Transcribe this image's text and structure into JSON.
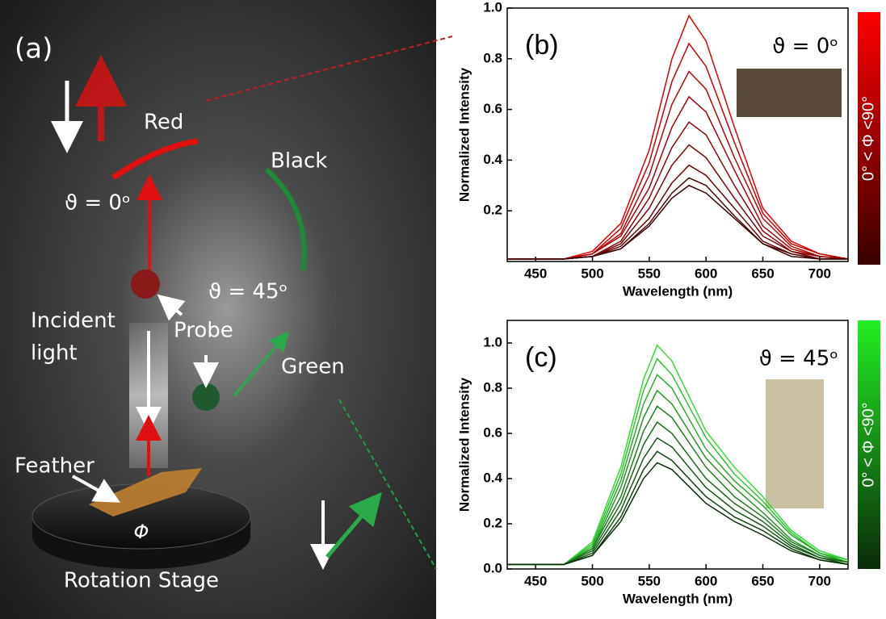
{
  "schematic": {
    "panel_label": "(a)",
    "red": "Red",
    "black": "Black",
    "theta0": "ϑ = 0ᵒ",
    "theta45": "ϑ = 45ᵒ",
    "incident": "Incident",
    "incident2": "light",
    "probe": "Probe",
    "green": "Green",
    "feather": "Feather",
    "phi": "Φ",
    "stage": "Rotation Stage"
  },
  "chart_data": [
    {
      "type": "line",
      "panel_label": "(b)",
      "annotation": "ϑ = 0ᵒ",
      "xlabel": "Wavelength (nm)",
      "ylabel": "Normalized Intensity",
      "xlim": [
        425,
        725
      ],
      "ylim": [
        0,
        1.0
      ],
      "xticks": [
        450,
        500,
        550,
        600,
        650,
        700
      ],
      "yticks": [
        0.2,
        0.4,
        0.6,
        0.8,
        {
          "value": 1,
          "label": "1.0"
        }
      ],
      "colorbar": {
        "label": "0° < Φ <90°",
        "colors": [
          "#ff0000",
          "#3a0000"
        ]
      },
      "x": [
        425,
        450,
        475,
        500,
        525,
        550,
        570,
        585,
        600,
        625,
        650,
        675,
        700,
        725
      ],
      "series": [
        {
          "color": "#e00000",
          "values": [
            0.01,
            0.01,
            0.01,
            0.04,
            0.15,
            0.44,
            0.8,
            0.97,
            0.87,
            0.53,
            0.21,
            0.08,
            0.03,
            0.01
          ]
        },
        {
          "color": "#cc0000",
          "values": [
            0.01,
            0.01,
            0.01,
            0.03,
            0.13,
            0.39,
            0.71,
            0.86,
            0.77,
            0.47,
            0.19,
            0.07,
            0.03,
            0.01
          ]
        },
        {
          "color": "#b80505",
          "values": [
            0.01,
            0.01,
            0.01,
            0.03,
            0.11,
            0.34,
            0.62,
            0.75,
            0.68,
            0.41,
            0.17,
            0.06,
            0.02,
            0.01
          ]
        },
        {
          "color": "#a30505",
          "values": [
            0.01,
            0.01,
            0.01,
            0.03,
            0.1,
            0.29,
            0.53,
            0.65,
            0.59,
            0.36,
            0.14,
            0.05,
            0.02,
            0.01
          ]
        },
        {
          "color": "#8f0505",
          "values": [
            0.01,
            0.01,
            0.01,
            0.02,
            0.08,
            0.25,
            0.45,
            0.55,
            0.5,
            0.3,
            0.12,
            0.04,
            0.02,
            0.01
          ]
        },
        {
          "color": "#7a0505",
          "values": [
            0.01,
            0.01,
            0.01,
            0.02,
            0.07,
            0.21,
            0.38,
            0.46,
            0.41,
            0.25,
            0.1,
            0.04,
            0.01,
            0.01
          ]
        },
        {
          "color": "#660505",
          "values": [
            0.01,
            0.01,
            0.01,
            0.02,
            0.06,
            0.17,
            0.31,
            0.38,
            0.34,
            0.21,
            0.08,
            0.03,
            0.01,
            0.01
          ]
        },
        {
          "color": "#520505",
          "values": [
            0.01,
            0.01,
            0.01,
            0.02,
            0.05,
            0.15,
            0.27,
            0.33,
            0.3,
            0.18,
            0.07,
            0.03,
            0.01,
            0.01
          ]
        },
        {
          "color": "#3a0303",
          "values": [
            0.01,
            0.01,
            0.01,
            0.02,
            0.05,
            0.14,
            0.25,
            0.3,
            0.27,
            0.17,
            0.07,
            0.02,
            0.01,
            0.01
          ]
        }
      ]
    },
    {
      "type": "line",
      "panel_label": "(c)",
      "annotation": "ϑ = 45ᵒ",
      "xlabel": "Wavelength (nm)",
      "ylabel": "Normalized Intensity",
      "xlim": [
        425,
        725
      ],
      "ylim": [
        0,
        1.1
      ],
      "xticks": [
        450,
        500,
        550,
        600,
        650,
        700
      ],
      "yticks": [
        {
          "value": 0,
          "label": "0.0"
        },
        0.2,
        0.4,
        0.6,
        0.8,
        {
          "value": 1,
          "label": "1.0"
        }
      ],
      "colorbar": {
        "label": "0° < Φ <90°",
        "colors": [
          "#22ee22",
          "#0a2a0a"
        ]
      },
      "x": [
        425,
        450,
        475,
        500,
        525,
        545,
        557,
        570,
        600,
        625,
        650,
        675,
        700,
        725
      ],
      "series": [
        {
          "color": "#33dd33",
          "values": [
            0.02,
            0.02,
            0.02,
            0.12,
            0.45,
            0.84,
            0.99,
            0.92,
            0.61,
            0.45,
            0.32,
            0.17,
            0.08,
            0.04
          ]
        },
        {
          "color": "#2ec42e",
          "values": [
            0.02,
            0.02,
            0.02,
            0.11,
            0.42,
            0.79,
            0.93,
            0.86,
            0.58,
            0.42,
            0.3,
            0.16,
            0.07,
            0.04
          ]
        },
        {
          "color": "#29ad29",
          "values": [
            0.02,
            0.02,
            0.02,
            0.1,
            0.39,
            0.73,
            0.86,
            0.8,
            0.53,
            0.39,
            0.28,
            0.15,
            0.07,
            0.03
          ]
        },
        {
          "color": "#249624",
          "values": [
            0.02,
            0.02,
            0.02,
            0.09,
            0.36,
            0.67,
            0.79,
            0.73,
            0.49,
            0.36,
            0.25,
            0.13,
            0.06,
            0.03
          ]
        },
        {
          "color": "#1f801f",
          "values": [
            0.02,
            0.02,
            0.02,
            0.09,
            0.32,
            0.61,
            0.72,
            0.67,
            0.45,
            0.32,
            0.23,
            0.12,
            0.06,
            0.03
          ]
        },
        {
          "color": "#1a6b1a",
          "values": [
            0.02,
            0.02,
            0.02,
            0.08,
            0.29,
            0.55,
            0.65,
            0.6,
            0.4,
            0.29,
            0.21,
            0.11,
            0.05,
            0.03
          ]
        },
        {
          "color": "#155815",
          "values": [
            0.02,
            0.02,
            0.02,
            0.07,
            0.26,
            0.49,
            0.58,
            0.54,
            0.36,
            0.26,
            0.19,
            0.1,
            0.05,
            0.02
          ]
        },
        {
          "color": "#104510",
          "values": [
            0.02,
            0.02,
            0.02,
            0.06,
            0.23,
            0.44,
            0.52,
            0.48,
            0.32,
            0.23,
            0.17,
            0.09,
            0.04,
            0.02
          ]
        },
        {
          "color": "#0a300a",
          "values": [
            0.02,
            0.02,
            0.02,
            0.06,
            0.21,
            0.4,
            0.47,
            0.44,
            0.29,
            0.21,
            0.15,
            0.08,
            0.04,
            0.02
          ]
        }
      ]
    }
  ]
}
